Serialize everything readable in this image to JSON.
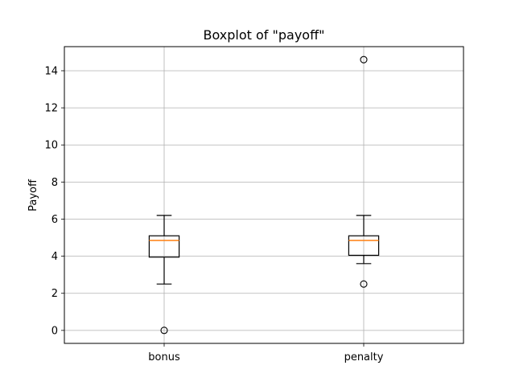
{
  "chart_data": {
    "type": "boxplot",
    "title": "Boxplot of \"payoff\"",
    "xlabel": "",
    "ylabel": "Payoff",
    "ylim": [
      -0.7,
      15.3
    ],
    "yticks": [
      0,
      2,
      4,
      6,
      8,
      10,
      12,
      14
    ],
    "grid": true,
    "categories": [
      "bonus",
      "penalty"
    ],
    "boxes": [
      {
        "category": "bonus",
        "whisker_low": 2.5,
        "q1": 3.95,
        "median": 4.85,
        "q3": 5.1,
        "whisker_high": 6.2,
        "outliers": [
          0.0
        ]
      },
      {
        "category": "penalty",
        "whisker_low": 3.6,
        "q1": 4.05,
        "median": 4.85,
        "q3": 5.1,
        "whisker_high": 6.2,
        "outliers": [
          2.5,
          14.6
        ]
      }
    ],
    "colors": {
      "box": "#000000",
      "median": "#ff7f0e",
      "grid": "#b0b0b0",
      "outlier": "#000000"
    }
  }
}
